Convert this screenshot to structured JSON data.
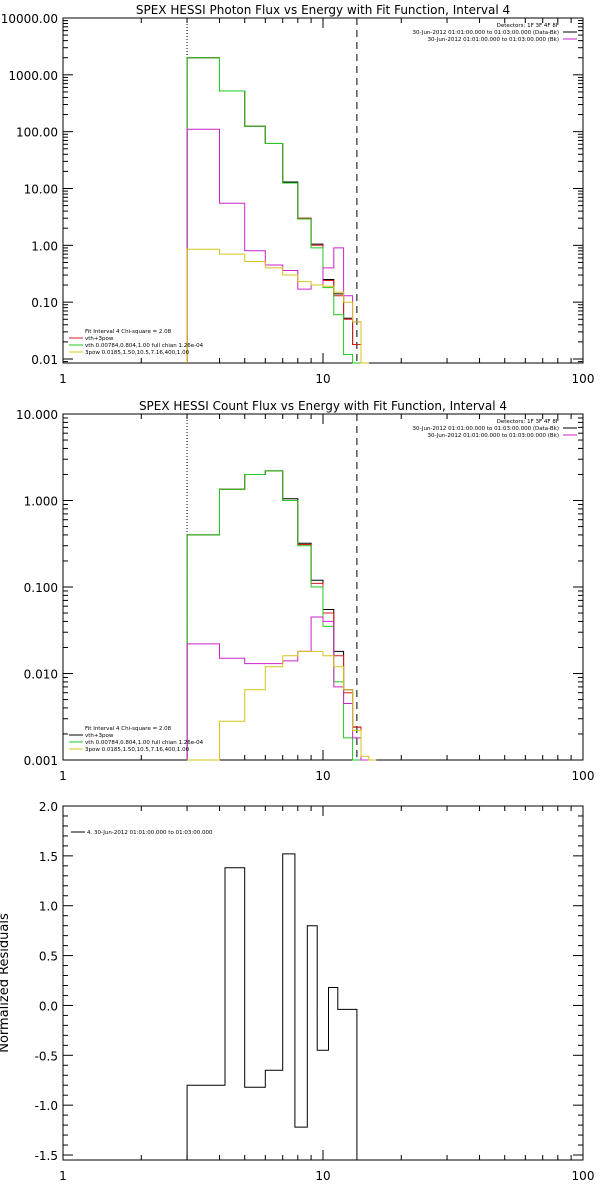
{
  "colors": {
    "black": "#000000",
    "red": "#dd1b1b",
    "green": "#1ccb1c",
    "magenta": "#cc22cc",
    "yellow": "#d8c31a"
  },
  "panels": [
    {
      "id": "photon",
      "title": "SPEX HESSI Photon Flux vs Energy with Fit Function, Interval 4",
      "x_scale": "log",
      "xlim": [
        1,
        100
      ],
      "x_ticks": [
        {
          "v": 1,
          "label": "1"
        },
        {
          "v": 10,
          "label": "10"
        },
        {
          "v": 100,
          "label": "100"
        }
      ],
      "y_scale": "log",
      "ylim": [
        0.0085,
        10000
      ],
      "y_ticks": [
        {
          "v": 0.01,
          "label": "0.01"
        },
        {
          "v": 0.1,
          "label": "0.10"
        },
        {
          "v": 1,
          "label": "1.00"
        },
        {
          "v": 10,
          "label": "10.00"
        },
        {
          "v": 100,
          "label": "100.00"
        },
        {
          "v": 1000,
          "label": "1000.00"
        },
        {
          "v": 10000,
          "label": "10000.00"
        }
      ],
      "vlines": [
        {
          "x": 3,
          "style": "dotted"
        },
        {
          "x": 13.5,
          "style": "dashed"
        }
      ],
      "legend_topright": [
        {
          "text": "Detectors: 1F 3F 4F 8F",
          "color": "",
          "swatch": false
        },
        {
          "text": "30-Jun-2012 01:01:00.000 to 01:03:00.000 (Data-Bk)",
          "color": "black",
          "swatch": true
        },
        {
          "text": "30-Jun-2012 01:01:00.000 to 01:03:00.000 (Bk)",
          "color": "magenta",
          "swatch": true
        }
      ],
      "legend_bottomleft": [
        {
          "text": "Fit Interval 4   Chi-square = 2.08",
          "color": "",
          "swatch": false
        },
        {
          "text": "vth+3pow",
          "color": "red",
          "swatch": true
        },
        {
          "text": "vth 0.00784,0.804,1.00   full chian 1.26e-04",
          "color": "green",
          "swatch": true
        },
        {
          "text": "3pow 0.0185,1.50,10.5,7.16,400,1.00",
          "color": "yellow",
          "swatch": true
        }
      ]
    },
    {
      "id": "count",
      "title": "SPEX HESSI Count Flux vs Energy with Fit Function, Interval 4",
      "x_scale": "log",
      "xlim": [
        1,
        100
      ],
      "x_ticks": [
        {
          "v": 1,
          "label": "1"
        },
        {
          "v": 10,
          "label": "10"
        },
        {
          "v": 100,
          "label": "100"
        }
      ],
      "y_scale": "log",
      "ylim": [
        0.001,
        10
      ],
      "y_ticks": [
        {
          "v": 0.001,
          "label": "0.001"
        },
        {
          "v": 0.01,
          "label": "0.010"
        },
        {
          "v": 0.1,
          "label": "0.100"
        },
        {
          "v": 1,
          "label": "1.000"
        },
        {
          "v": 10,
          "label": "10.000"
        }
      ],
      "vlines": [
        {
          "x": 3,
          "style": "dotted"
        },
        {
          "x": 13.5,
          "style": "dashed"
        }
      ],
      "legend_topright": [
        {
          "text": "Detectors: 1F 3F 4F 8F",
          "color": "",
          "swatch": false
        },
        {
          "text": "30-Jun-2012 01:01:00.000 to 01:03:00.000 (Data-Bk)",
          "color": "black",
          "swatch": true
        },
        {
          "text": "30-Jun-2012 01:01:00.000 to 01:03:00.000 (Bk)",
          "color": "magenta",
          "swatch": true
        }
      ],
      "legend_bottomleft": [
        {
          "text": "Fit Interval 4   Chi-square = 2.08",
          "color": "",
          "swatch": false
        },
        {
          "text": "vth+3pow",
          "color": "black",
          "swatch": true
        },
        {
          "text": "vth 0.00784,0.804,1.00   full chian 1.26e-04",
          "color": "green",
          "swatch": true
        },
        {
          "text": "3pow 0.0185,1.50,10.5,7.16,400,1.00",
          "color": "yellow",
          "swatch": true
        }
      ]
    },
    {
      "id": "resid",
      "title": "",
      "x_scale": "log",
      "xlim": [
        1,
        100
      ],
      "x_ticks": [
        {
          "v": 1,
          "label": "1"
        },
        {
          "v": 10,
          "label": "10"
        },
        {
          "v": 100,
          "label": "100"
        }
      ],
      "y_scale": "linear",
      "ylim": [
        -1.55,
        2.0
      ],
      "y_ticks": [
        {
          "v": -1.5,
          "label": "-1.5"
        },
        {
          "v": -1.0,
          "label": "-1.0"
        },
        {
          "v": -0.5,
          "label": "-0.5"
        },
        {
          "v": 0.0,
          "label": "0.0"
        },
        {
          "v": 0.5,
          "label": "0.5"
        },
        {
          "v": 1.0,
          "label": "1.0"
        },
        {
          "v": 1.5,
          "label": "1.5"
        },
        {
          "v": 2.0,
          "label": "2.0"
        }
      ],
      "ylabel": "Normalized Residuals",
      "vlines": [],
      "legend_topright": [],
      "legend_bottomleft": [],
      "legend_topleft": [
        {
          "text": "4. 30-Jun-2012 01:01:00.000 to 01:03:00.000",
          "color": "black",
          "swatch": true
        }
      ]
    }
  ],
  "chart_data": [
    {
      "type": "line",
      "title": "SPEX HESSI Photon Flux vs Energy with Fit Function, Interval 4",
      "x_edges": [
        3,
        4,
        5,
        6,
        7,
        8,
        9,
        10,
        11,
        12,
        13,
        14,
        15
      ],
      "series": [
        {
          "color": "black",
          "values": [
            2000,
            520,
            125,
            62,
            13,
            3.0,
            1.05,
            0.25,
            0.14,
            0.052,
            0.018,
            0.0085
          ]
        },
        {
          "color": "red",
          "values": [
            2000,
            520,
            125,
            62,
            12.5,
            3.0,
            1.0,
            0.24,
            0.13,
            0.05,
            0.018,
            0.0085
          ]
        },
        {
          "color": "green",
          "values": [
            2000,
            520,
            125,
            62,
            12.5,
            2.9,
            0.9,
            0.18,
            0.06,
            0.012,
            0.0085,
            0.0085
          ]
        },
        {
          "color": "magenta",
          "values": [
            110,
            5.5,
            0.8,
            0.45,
            0.36,
            0.17,
            0.2,
            0.4,
            0.9,
            0.13,
            0.045,
            0.0085
          ]
        },
        {
          "color": "yellow",
          "values": [
            0.85,
            0.7,
            0.52,
            0.4,
            0.3,
            0.23,
            0.2,
            0.19,
            0.15,
            0.1,
            0.045,
            0.0085
          ]
        }
      ]
    },
    {
      "type": "line",
      "title": "SPEX HESSI Count Flux vs Energy with Fit Function, Interval 4",
      "x_edges": [
        3,
        4,
        5,
        6,
        7,
        8,
        9,
        10,
        11,
        12,
        13,
        14,
        15,
        16
      ],
      "series": [
        {
          "color": "black",
          "values": [
            0.4,
            1.35,
            2.0,
            2.2,
            1.05,
            0.32,
            0.12,
            0.055,
            0.018,
            0.0065,
            0.0024,
            0.001,
            0.001
          ]
        },
        {
          "color": "red",
          "values": [
            0.4,
            1.35,
            2.0,
            2.2,
            1.0,
            0.31,
            0.11,
            0.05,
            0.016,
            0.006,
            0.0024,
            0.001,
            0.001
          ]
        },
        {
          "color": "green",
          "values": [
            0.4,
            1.35,
            2.0,
            2.2,
            1.0,
            0.3,
            0.1,
            0.035,
            0.008,
            0.0018,
            0.001,
            0.001,
            0.001
          ]
        },
        {
          "color": "magenta",
          "values": [
            0.022,
            0.015,
            0.013,
            0.013,
            0.014,
            0.018,
            0.045,
            0.04,
            0.007,
            0.0045,
            0.0018,
            0.001,
            0.001
          ]
        },
        {
          "color": "yellow",
          "values": [
            0.001,
            0.0028,
            0.0065,
            0.012,
            0.016,
            0.018,
            0.018,
            0.016,
            0.012,
            0.0065,
            0.0022,
            0.0011,
            0.001
          ]
        }
      ]
    },
    {
      "type": "line",
      "ylabel": "Normalized Residuals",
      "x_edges": [
        3,
        4.2,
        5,
        6,
        7,
        7.8,
        8.7,
        9.5,
        10.5,
        11.4,
        12.3,
        13.5
      ],
      "series": [
        {
          "color": "black",
          "values": [
            -0.8,
            1.38,
            -0.82,
            -0.65,
            1.52,
            -1.22,
            0.8,
            -0.45,
            0.18,
            -0.04,
            -0.04
          ]
        }
      ]
    }
  ]
}
